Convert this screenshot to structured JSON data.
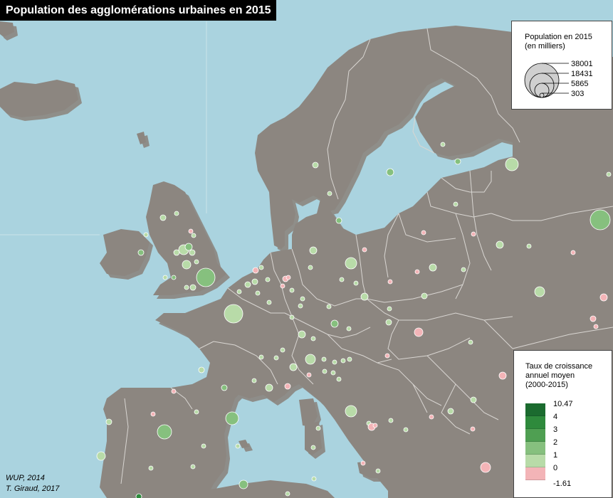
{
  "title": "Population des agglomérations urbaines en 2015",
  "legend_size": {
    "title_line1": "Population en 2015",
    "title_line2": "(en milliers)",
    "values": [
      "38001",
      "18431",
      "5865",
      "303"
    ]
  },
  "legend_color": {
    "title_line1": "Taux de croissance",
    "title_line2": "annuel moyen",
    "title_line3": "(2000-2015)",
    "breaks": [
      "10.47",
      "4",
      "3",
      "2",
      "1",
      "0",
      "-1.61"
    ],
    "colors": [
      "#1b6b2f",
      "#2e8a3c",
      "#4f9f52",
      "#86c07e",
      "#b8dba8",
      "#f3b4b7"
    ]
  },
  "source_line1": "WUP, 2014",
  "source_line2": "T. Giraud, 2017",
  "colors": {
    "sea": "#aad3df",
    "land": "#8c8680",
    "border": "#d9d6d2",
    "shadow": "#3e3a37"
  }
}
